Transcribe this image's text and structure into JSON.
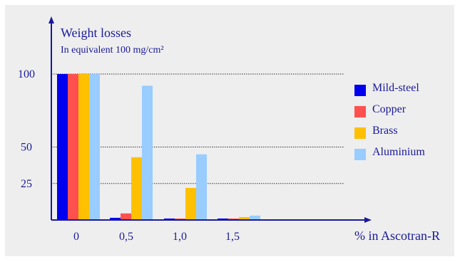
{
  "chart_data": {
    "type": "bar",
    "title": "Weight losses",
    "subtitle": "In equivalent 100 mg/cm²",
    "xlabel": "% in Ascotran-R",
    "ylabel": "",
    "categories": [
      "0",
      "0,5",
      "1,0",
      "1,5"
    ],
    "yticks": [
      "100",
      "50",
      "25"
    ],
    "ytick_values": [
      100,
      50,
      25
    ],
    "ylim": [
      0,
      100
    ],
    "grid": true,
    "legend_position": "right",
    "series": [
      {
        "name": "Mild-steel",
        "color": "#0000ee",
        "values": [
          100,
          1.5,
          1,
          1
        ]
      },
      {
        "name": "Copper",
        "color": "#ff5050",
        "values": [
          100,
          4.5,
          1,
          1
        ]
      },
      {
        "name": "Brass",
        "color": "#ffc000",
        "values": [
          100,
          43,
          22,
          2
        ]
      },
      {
        "name": "Aluminium",
        "color": "#99ccff",
        "values": [
          100,
          92,
          45,
          3
        ]
      }
    ]
  }
}
